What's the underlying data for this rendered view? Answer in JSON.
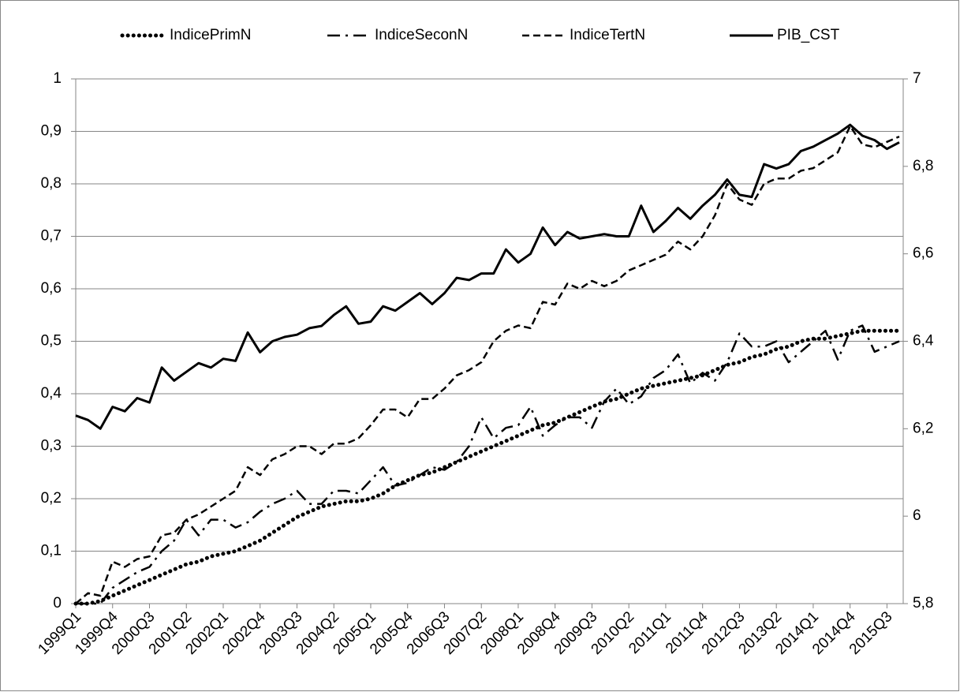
{
  "chart_data": {
    "type": "line",
    "categories": [
      "1999Q1",
      null,
      null,
      "1999Q4",
      null,
      null,
      "2000Q3",
      null,
      null,
      "2001Q2",
      null,
      null,
      "2002Q1",
      null,
      null,
      "2002Q4",
      null,
      null,
      "2003Q3",
      null,
      null,
      "2004Q2",
      null,
      null,
      "2005Q1",
      null,
      null,
      "2005Q4",
      null,
      null,
      "2006Q3",
      null,
      null,
      "2007Q2",
      null,
      null,
      "2008Q1",
      null,
      null,
      "2008Q4",
      null,
      null,
      "2009Q3",
      null,
      null,
      "2010Q2",
      null,
      null,
      "2011Q1",
      null,
      null,
      "2011Q4",
      null,
      null,
      "2012Q3",
      null,
      null,
      "2013Q2",
      null,
      null,
      "2014Q1",
      null,
      null,
      "2014Q4",
      null,
      null,
      "2015Q3",
      null
    ],
    "series": [
      {
        "name": "IndicePrimN",
        "color": "#000000",
        "dash": "dot",
        "values": [
          0,
          0,
          0.005,
          0.015,
          0.025,
          0.035,
          0.045,
          0.055,
          0.065,
          0.075,
          0.08,
          0.09,
          0.095,
          0.1,
          0.11,
          0.12,
          0.135,
          0.15,
          0.165,
          0.175,
          0.185,
          0.19,
          0.195,
          0.195,
          0.2,
          0.21,
          0.225,
          0.235,
          0.245,
          0.25,
          0.26,
          0.27,
          0.28,
          0.29,
          0.3,
          0.31,
          0.32,
          0.33,
          0.34,
          0.345,
          0.355,
          0.365,
          0.375,
          0.385,
          0.39,
          0.4,
          0.41,
          0.415,
          0.42,
          0.425,
          0.43,
          0.435,
          0.445,
          0.455,
          0.46,
          0.47,
          0.475,
          0.485,
          0.49,
          0.5,
          0.505,
          0.505,
          0.51,
          0.515,
          0.52,
          0.52,
          0.52,
          0.52
        ]
      },
      {
        "name": "IndiceSeconN",
        "color": "#000000",
        "dash": "dashdot",
        "values": [
          0,
          0,
          0,
          0.03,
          0.045,
          0.06,
          0.07,
          0.1,
          0.12,
          0.16,
          0.13,
          0.16,
          0.16,
          0.145,
          0.155,
          0.175,
          0.19,
          0.2,
          0.215,
          0.19,
          0.19,
          0.215,
          0.215,
          0.21,
          0.235,
          0.26,
          0.225,
          0.23,
          0.245,
          0.26,
          0.255,
          0.27,
          0.3,
          0.355,
          0.315,
          0.335,
          0.34,
          0.375,
          0.32,
          0.34,
          0.355,
          0.355,
          0.335,
          0.385,
          0.41,
          0.38,
          0.395,
          0.43,
          0.445,
          0.475,
          0.42,
          0.44,
          0.425,
          0.46,
          0.515,
          0.49,
          0.49,
          0.5,
          0.46,
          0.48,
          0.5,
          0.52,
          0.465,
          0.52,
          0.53,
          0.48,
          0.49,
          0.5
        ]
      },
      {
        "name": "IndiceTertN",
        "color": "#000000",
        "dash": "dash",
        "values": [
          0,
          0.02,
          0.015,
          0.08,
          0.07,
          0.085,
          0.09,
          0.13,
          0.135,
          0.16,
          0.17,
          0.185,
          0.2,
          0.215,
          0.26,
          0.245,
          0.275,
          0.285,
          0.3,
          0.3,
          0.285,
          0.305,
          0.305,
          0.315,
          0.34,
          0.37,
          0.37,
          0.355,
          0.39,
          0.39,
          0.41,
          0.435,
          0.445,
          0.46,
          0.5,
          0.52,
          0.53,
          0.525,
          0.575,
          0.57,
          0.61,
          0.6,
          0.615,
          0.605,
          0.615,
          0.635,
          0.645,
          0.655,
          0.665,
          0.69,
          0.675,
          0.7,
          0.74,
          0.8,
          0.77,
          0.76,
          0.8,
          0.81,
          0.81,
          0.825,
          0.83,
          0.845,
          0.86,
          0.91,
          0.875,
          0.87,
          0.88,
          0.89
        ]
      },
      {
        "name": "PIB_CST",
        "color": "#000000",
        "dash": "solid",
        "axis": "y2",
        "values": [
          6.23,
          6.22,
          6.2,
          6.25,
          6.24,
          6.27,
          6.26,
          6.34,
          6.31,
          6.33,
          6.35,
          6.34,
          6.36,
          6.355,
          6.42,
          6.375,
          6.4,
          6.41,
          6.415,
          6.43,
          6.435,
          6.46,
          6.48,
          6.44,
          6.445,
          6.48,
          6.47,
          6.49,
          6.51,
          6.485,
          6.51,
          6.545,
          6.54,
          6.555,
          6.555,
          6.61,
          6.58,
          6.6,
          6.66,
          6.62,
          6.65,
          6.635,
          6.64,
          6.645,
          6.64,
          6.64,
          6.71,
          6.65,
          6.675,
          6.705,
          6.68,
          6.71,
          6.735,
          6.77,
          6.735,
          6.73,
          6.805,
          6.795,
          6.805,
          6.835,
          6.845,
          6.86,
          6.875,
          6.895,
          6.87,
          6.86,
          6.84,
          6.855
        ]
      }
    ],
    "ylim": [
      0,
      1
    ],
    "yticks": [
      0,
      {
        "value": 0.1,
        "label": "0,1"
      },
      {
        "value": 0.2,
        "label": "0,2"
      },
      {
        "value": 0.3,
        "label": "0,3"
      },
      {
        "value": 0.4,
        "label": "0,4"
      },
      {
        "value": 0.5,
        "label": "0,5"
      },
      {
        "value": 0.6,
        "label": "0,6"
      },
      {
        "value": 0.7,
        "label": "0,7"
      },
      {
        "value": 0.8,
        "label": "0,8"
      },
      {
        "value": 0.9,
        "label": "0,9"
      },
      1
    ],
    "y2lim": [
      5.8,
      7
    ],
    "y2ticks": [
      {
        "value": 5.8,
        "label": "5,8"
      },
      6,
      {
        "value": 6.2,
        "label": "6,2"
      },
      {
        "value": 6.4,
        "label": "6,4"
      },
      {
        "value": 6.6,
        "label": "6,6"
      },
      {
        "value": 6.8,
        "label": "6,8"
      },
      7
    ],
    "grid": true,
    "legend": "top"
  }
}
